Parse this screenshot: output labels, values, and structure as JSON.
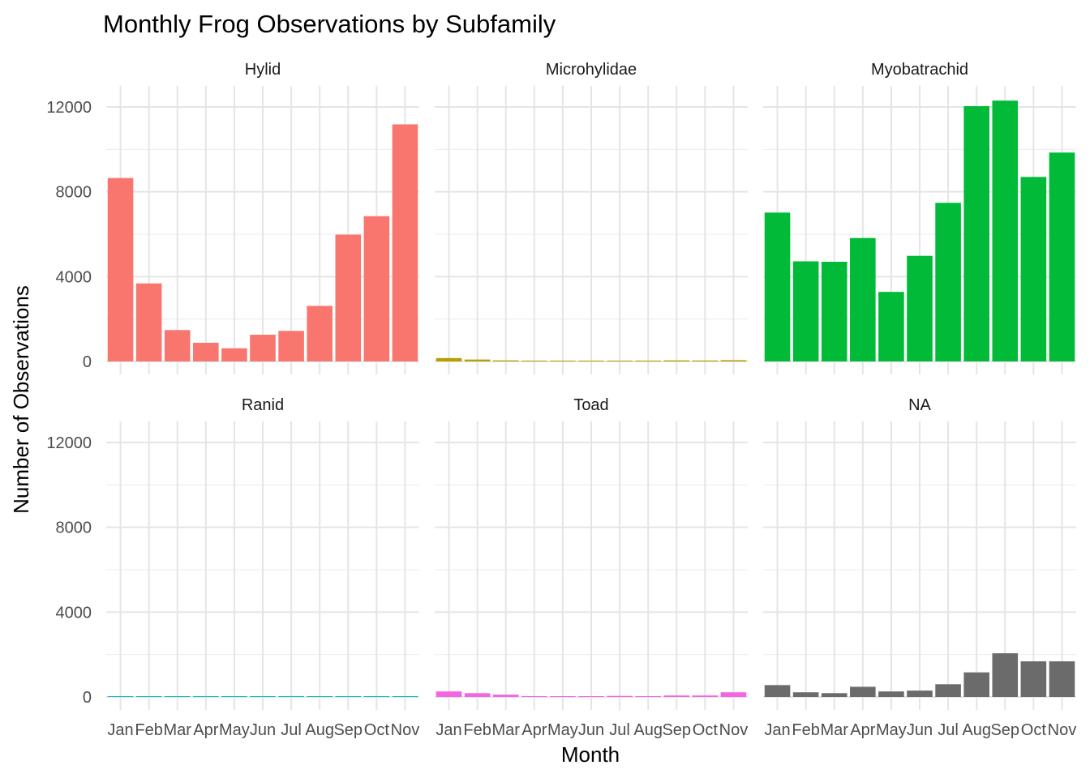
{
  "chart_data": {
    "type": "bar",
    "title": "Monthly Frog Observations by Subfamily",
    "xlabel": "Month",
    "ylabel": "Number of Observations",
    "categories": [
      "Jan",
      "Feb",
      "Mar",
      "Apr",
      "May",
      "Jun",
      "Jul",
      "Aug",
      "Sep",
      "Oct",
      "Nov"
    ],
    "ylim": [
      0,
      13000
    ],
    "yticks": [
      "0",
      "4000",
      "8000",
      "12000"
    ],
    "grid": true,
    "legend": "none",
    "series": [
      {
        "name": "Hylid",
        "color": "#F8766D",
        "values": [
          8650,
          3680,
          1480,
          880,
          620,
          1260,
          1440,
          2620,
          5980,
          6850,
          11180
        ]
      },
      {
        "name": "Microhylidae",
        "color": "#B79F00",
        "values": [
          160,
          90,
          50,
          30,
          15,
          25,
          35,
          40,
          50,
          45,
          60
        ]
      },
      {
        "name": "Myobatrachid",
        "color": "#00BA38",
        "values": [
          7020,
          4720,
          4700,
          5820,
          3280,
          4980,
          7480,
          12040,
          12300,
          8700,
          9850
        ]
      },
      {
        "name": "Ranid",
        "color": "#00BFC4",
        "values": [
          30,
          15,
          20,
          40,
          25,
          30,
          40,
          35,
          20,
          25,
          35
        ]
      },
      {
        "name": "Toad",
        "color": "#F564E3",
        "values": [
          260,
          180,
          110,
          40,
          15,
          20,
          50,
          40,
          70,
          70,
          220
        ]
      },
      {
        "name": "NA",
        "color": "#6B6B6B",
        "values": [
          560,
          220,
          180,
          480,
          260,
          300,
          600,
          1160,
          2060,
          1680,
          1680
        ]
      }
    ]
  }
}
